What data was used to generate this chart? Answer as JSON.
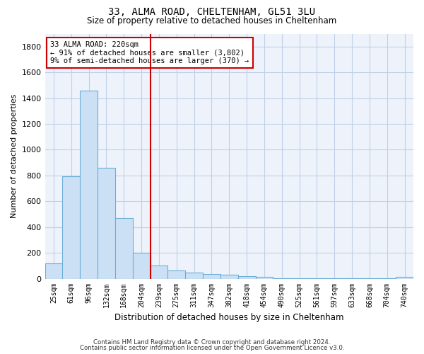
{
  "title": "33, ALMA ROAD, CHELTENHAM, GL51 3LU",
  "subtitle": "Size of property relative to detached houses in Cheltenham",
  "xlabel": "Distribution of detached houses by size in Cheltenham",
  "ylabel": "Number of detached properties",
  "bar_color": "#cce0f5",
  "bar_edge_color": "#6aaed6",
  "vline_color": "#cc0000",
  "categories": [
    "25sqm",
    "61sqm",
    "96sqm",
    "132sqm",
    "168sqm",
    "204sqm",
    "239sqm",
    "275sqm",
    "311sqm",
    "347sqm",
    "382sqm",
    "418sqm",
    "454sqm",
    "490sqm",
    "525sqm",
    "561sqm",
    "597sqm",
    "633sqm",
    "668sqm",
    "704sqm",
    "740sqm"
  ],
  "values": [
    120,
    795,
    1460,
    860,
    470,
    200,
    100,
    65,
    45,
    35,
    30,
    20,
    15,
    5,
    5,
    3,
    2,
    2,
    2,
    2,
    15
  ],
  "vline_index": 5.5,
  "ylim": [
    0,
    1900
  ],
  "yticks": [
    0,
    200,
    400,
    600,
    800,
    1000,
    1200,
    1400,
    1600,
    1800
  ],
  "annotation_title": "33 ALMA ROAD: 220sqm",
  "annotation_line1": "← 91% of detached houses are smaller (3,802)",
  "annotation_line2": "9% of semi-detached houses are larger (370) →",
  "annotation_box_color": "#cc0000",
  "footer_line1": "Contains HM Land Registry data © Crown copyright and database right 2024.",
  "footer_line2": "Contains public sector information licensed under the Open Government Licence v3.0.",
  "bg_color": "#eef3fb",
  "grid_color": "#c0cfe8"
}
